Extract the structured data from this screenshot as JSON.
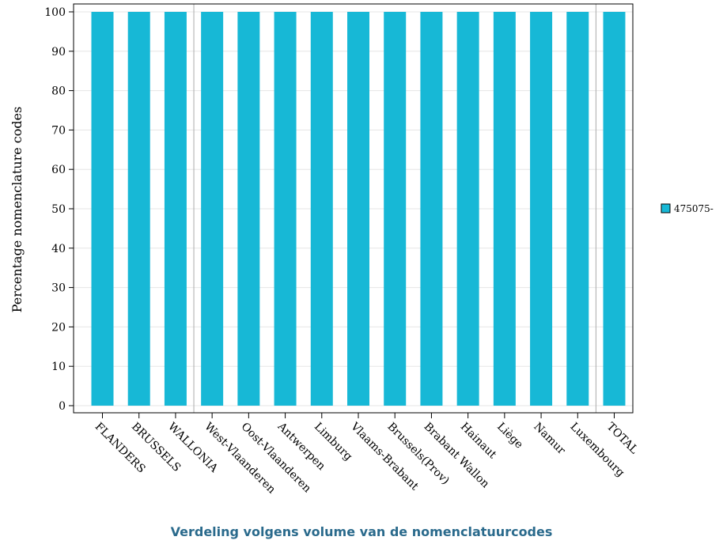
{
  "chart_data": {
    "type": "bar",
    "title": "Verdeling volgens volume van de nomenclatuurcodes",
    "xlabel": "",
    "ylabel": "Percentage nomenclature codes",
    "ylim": [
      0,
      100
    ],
    "yticks": [
      0,
      10,
      20,
      30,
      40,
      50,
      60,
      70,
      80,
      90,
      100
    ],
    "categories": [
      "FLANDERS",
      "BRUSSELS",
      "WALLONIA",
      "West-Vlaanderen",
      "Oost-Vlaanderen",
      "Antwerpen",
      "Limburg",
      "Vlaams-Brabant",
      "Brussels(Prov)",
      "Brabant Wallon",
      "Hainaut",
      "Liège",
      "Namur",
      "Luxembourg",
      "TOTAL"
    ],
    "series": [
      {
        "name": "475075-",
        "color": "#17b8d6",
        "values": [
          100,
          100,
          100,
          100,
          100,
          100,
          100,
          100,
          100,
          100,
          100,
          100,
          100,
          100,
          100
        ]
      }
    ],
    "group_separators_after": [
      "WALLONIA",
      "Luxembourg"
    ],
    "grid": true,
    "legend_position": "right"
  }
}
